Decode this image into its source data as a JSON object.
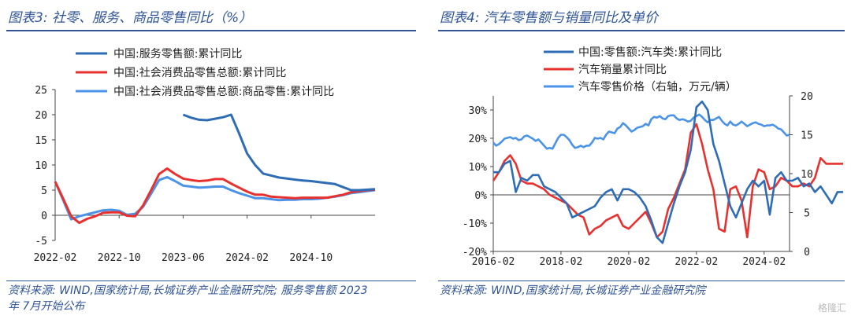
{
  "left": {
    "title": "图表3:  社零、服务、商品零售同比（%）",
    "source_line1": "资料来源: WIND,国家统计局,长城证券产业金融研究院; 服务零售额 2023",
    "source_line2": "年 7月开始公布"
  },
  "right": {
    "title": "图表4:  汽车零售额与销量同比及单价",
    "source_line1": "资料来源:  WIND,国家统计局,长城证券产业金融研究院"
  },
  "watermark": "格隆汇",
  "chart_data": [
    {
      "type": "line",
      "title": "",
      "ylim": [
        -5,
        25
      ],
      "yticks": [
        "-5",
        "0",
        "5",
        "10",
        "15",
        "20",
        "25"
      ],
      "ytick_values": [
        -5,
        0,
        5,
        10,
        15,
        20,
        25
      ],
      "xticks": [
        "2022-02",
        "2022-10",
        "2023-06",
        "2024-02",
        "2024-10"
      ],
      "xtick_index": [
        0,
        8,
        16,
        24,
        32
      ],
      "x_count": 41,
      "legend": "top",
      "series": [
        {
          "name": "中国:服务零售额:累计同比",
          "color": "#2e6db5",
          "start": 16,
          "values": [
            20.0,
            19.4,
            19.0,
            18.9,
            19.2,
            19.5,
            20.0,
            16.3,
            12.3,
            10.0,
            8.3,
            7.9,
            7.5,
            7.3,
            7.1,
            6.9,
            6.8,
            6.6,
            6.4,
            6.2,
            5.6,
            5.0,
            5.0,
            5.1,
            5.2
          ]
        },
        {
          "name": "中国:社会消费品零售总额:累计同比",
          "color": "#e8312f",
          "start": 0,
          "values": [
            6.7,
            3.3,
            -0.2,
            -1.5,
            -0.7,
            -0.2,
            0.5,
            0.6,
            0.6,
            -0.1,
            -0.2,
            2.0,
            5.0,
            8.2,
            9.3,
            8.2,
            7.3,
            7.0,
            6.8,
            6.9,
            7.2,
            7.2,
            6.3,
            5.5,
            4.7,
            4.1,
            4.1,
            3.7,
            3.6,
            3.5,
            3.4,
            3.5,
            3.5,
            3.5,
            3.5,
            3.8,
            4.1,
            4.6,
            4.8,
            5.0,
            5.1
          ]
        },
        {
          "name": "中国:社会消费品零售总额:商品零售:累计同比",
          "color": "#4a93e8",
          "start": 0,
          "values": [
            6.7,
            3.0,
            -0.8,
            -0.2,
            0.2,
            0.6,
            1.0,
            1.1,
            0.9,
            0.1,
            0.3,
            1.7,
            4.3,
            7.0,
            7.6,
            6.8,
            5.9,
            5.7,
            5.5,
            5.6,
            5.7,
            5.7,
            5.0,
            4.4,
            3.9,
            3.4,
            3.4,
            3.2,
            3.0,
            3.1,
            3.1,
            3.2,
            3.2,
            3.3,
            3.5,
            3.7,
            4.0,
            4.4,
            4.6,
            4.8,
            5.0
          ]
        }
      ]
    },
    {
      "type": "line",
      "title": "",
      "ylim": [
        -20,
        35
      ],
      "yticks": [
        "-20%",
        "-10%",
        "0%",
        "10%",
        "20%",
        "30%"
      ],
      "ytick_values": [
        -20,
        -10,
        0,
        10,
        20,
        30
      ],
      "y2lim": [
        0,
        20
      ],
      "y2ticks": [
        "0",
        "5",
        "10",
        "15",
        "20"
      ],
      "y2tick_values": [
        0,
        5,
        10,
        15,
        20
      ],
      "xticks": [
        "2016-02",
        "2018-02",
        "2020-02",
        "2022-02",
        "2024-02"
      ],
      "xtick_index": [
        0,
        24,
        48,
        72,
        96
      ],
      "x_count": 106,
      "legend": "top",
      "series": [
        {
          "name": "中国:零售额:汽车类:累计同比",
          "color": "#2e6db5",
          "axis": "left",
          "step": 2,
          "start": 0,
          "values": [
            8,
            8,
            11,
            12,
            1,
            6,
            5,
            7,
            7,
            3,
            2,
            1,
            -1,
            -3,
            -8,
            -7,
            -6,
            -5,
            -4,
            -1,
            1,
            2,
            -2,
            2,
            2,
            1,
            -1,
            -4,
            -9,
            -15,
            -17,
            -10,
            -3,
            3,
            8,
            16,
            31,
            33,
            30,
            18,
            12,
            4,
            -4,
            -8,
            -3,
            2,
            5,
            3,
            5,
            -7,
            6,
            8,
            5,
            5,
            6,
            3,
            4,
            1,
            3,
            0,
            -3,
            1,
            1
          ]
        },
        {
          "name": "汽车销量累计同比",
          "color": "#e8312f",
          "axis": "left",
          "step": 2,
          "start": 0,
          "values": [
            5,
            8,
            12,
            14,
            11,
            5,
            4,
            4,
            3,
            2,
            0,
            -1,
            -2,
            -3,
            -5,
            -7,
            -8,
            -14,
            -12,
            -11,
            -9,
            -8,
            -7,
            -11,
            -12,
            -10,
            -8,
            -6,
            -10,
            -15,
            -13,
            -5,
            -1,
            4,
            9,
            22,
            25,
            18,
            9,
            2,
            -12,
            -13,
            2,
            3,
            -2,
            -15,
            3,
            9,
            8,
            2,
            3,
            6,
            5,
            3,
            3,
            4,
            3,
            6,
            13,
            11,
            11,
            11,
            11
          ]
        },
        {
          "name": "汽车零售价格（右轴，万元/辆）",
          "color": "#4a93e8",
          "axis": "right",
          "step": 1,
          "start": 0,
          "values": [
            14.0,
            13.6,
            13.8,
            14.1,
            14.5,
            14.6,
            14.7,
            14.5,
            14.6,
            14.3,
            14.4,
            14.8,
            14.9,
            14.7,
            14.5,
            14.2,
            14.4,
            14.0,
            13.6,
            13.2,
            13.3,
            13.2,
            13.9,
            14.6,
            15.0,
            15.0,
            14.7,
            14.3,
            13.7,
            13.3,
            13.4,
            13.6,
            13.4,
            13.6,
            13.6,
            14.0,
            14.6,
            14.5,
            14.6,
            14.4,
            15.0,
            15.4,
            15.3,
            15.2,
            15.8,
            16.0,
            16.5,
            16.2,
            15.8,
            15.4,
            15.6,
            15.9,
            16.0,
            16.1,
            16.4,
            16.2,
            17.0,
            17.3,
            17.2,
            17.4,
            17.1,
            17.0,
            17.4,
            17.5,
            17.5,
            17.1,
            16.9,
            17.0,
            16.9,
            16.7,
            16.8,
            17.2,
            17.4,
            17.6,
            17.3,
            16.9,
            16.6,
            16.9,
            16.9,
            17.1,
            17.3,
            16.8,
            16.4,
            16.2,
            16.7,
            16.3,
            16.2,
            16.4,
            16.7,
            16.4,
            16.1,
            16.3,
            16.5,
            16.6,
            16.4,
            16.3,
            16.1,
            16.2,
            16.2,
            16.3,
            16.1,
            15.8,
            15.7,
            15.3,
            14.9,
            15.0
          ]
        }
      ]
    }
  ]
}
